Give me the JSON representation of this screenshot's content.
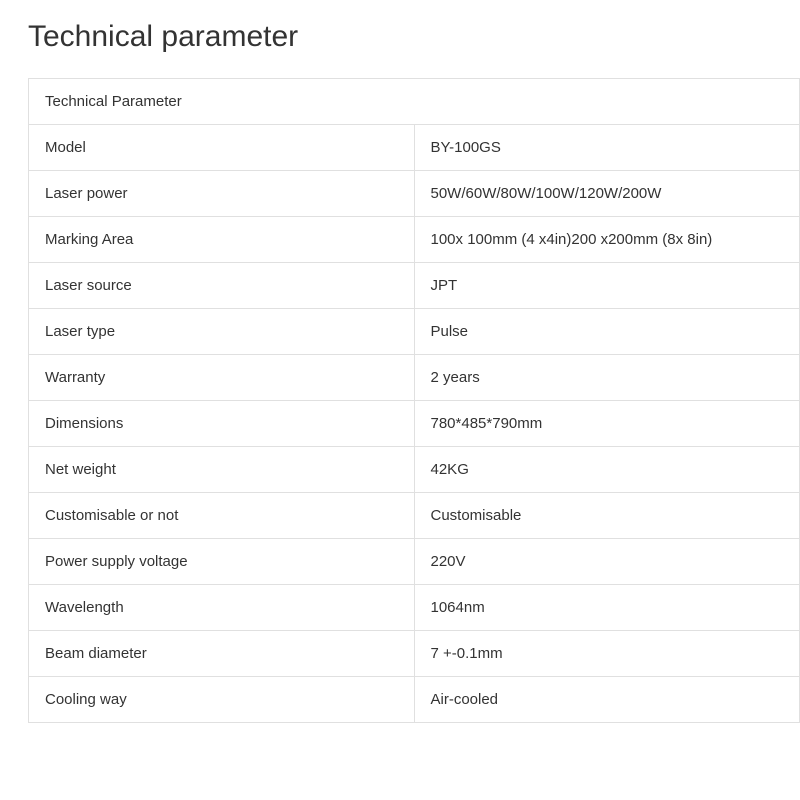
{
  "heading": "Technical parameter",
  "table": {
    "header_label": "Technical Parameter",
    "rows": [
      {
        "label": "Model",
        "value": "BY-100GS"
      },
      {
        "label": "Laser power",
        "value": "50W/60W/80W/100W/120W/200W"
      },
      {
        "label": "Marking Area",
        "value": "100x 100mm (4 x4in)200 x200mm (8x 8in)"
      },
      {
        "label": "Laser source",
        "value": "JPT"
      },
      {
        "label": "Laser type",
        "value": "Pulse"
      },
      {
        "label": "Warranty",
        "value": "2 years"
      },
      {
        "label": "Dimensions",
        "value": "780*485*790mm"
      },
      {
        "label": "Net weight",
        "value": "42KG"
      },
      {
        "label": "Customisable or not",
        "value": "Customisable"
      },
      {
        "label": "Power supply voltage",
        "value": "220V"
      },
      {
        "label": "Wavelength",
        "value": "1064nm"
      },
      {
        "label": "Beam diameter",
        "value": "7 +-0.1mm"
      },
      {
        "label": "Cooling way",
        "value": "Air-cooled"
      }
    ],
    "border_color": "#e0e0e0",
    "text_color": "#333333",
    "background_color": "#ffffff",
    "cell_padding": "14px 16px",
    "font_size": 15,
    "label_col_width": 370
  },
  "heading_style": {
    "font_size": 30,
    "color": "#333333",
    "font_weight": 400
  }
}
